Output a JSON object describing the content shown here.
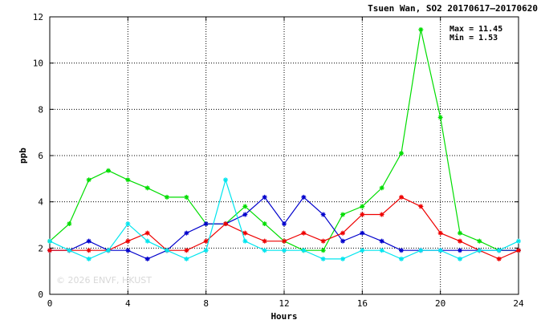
{
  "chart_data": {
    "type": "line",
    "title": "Tsuen Wan, SO2 20170617–20170620",
    "stats": {
      "max_label": "Max = 11.45",
      "min_label": "Min =  1.53"
    },
    "xlabel": "Hours",
    "ylabel": "ppb",
    "xlim": [
      0,
      24
    ],
    "ylim": [
      0,
      12
    ],
    "xticks": [
      0,
      4,
      8,
      12,
      16,
      20,
      24
    ],
    "yticks": [
      0,
      2,
      4,
      6,
      8,
      10,
      12
    ],
    "grid": true,
    "watermark": "© 2026  ENVF, HKUST",
    "x": [
      0,
      1,
      2,
      3,
      4,
      5,
      6,
      7,
      8,
      9,
      10,
      11,
      12,
      13,
      14,
      15,
      16,
      17,
      18,
      19,
      20,
      21,
      22,
      23,
      24
    ],
    "series": [
      {
        "color": "#00dd00",
        "values": [
          2.3,
          3.05,
          4.95,
          5.35,
          4.95,
          4.6,
          4.2,
          4.2,
          3.05,
          3.05,
          3.8,
          3.05,
          2.3,
          1.9,
          1.9,
          3.45,
          3.8,
          4.6,
          6.1,
          11.45,
          7.65,
          2.65,
          2.3,
          1.9,
          1.9
        ]
      },
      {
        "color": "#0000cc",
        "values": [
          1.9,
          1.9,
          2.3,
          1.9,
          1.9,
          1.53,
          1.9,
          2.65,
          3.05,
          3.05,
          3.45,
          4.2,
          3.05,
          4.2,
          3.45,
          2.3,
          2.65,
          2.3,
          1.9,
          1.9,
          1.9,
          1.9,
          1.9,
          1.9,
          1.9
        ]
      },
      {
        "color": "#ee0000",
        "values": [
          1.9,
          1.9,
          1.9,
          1.9,
          2.3,
          2.65,
          1.9,
          1.9,
          2.3,
          3.05,
          2.65,
          2.3,
          2.3,
          2.65,
          2.3,
          2.65,
          3.45,
          3.45,
          4.2,
          3.8,
          2.65,
          2.3,
          1.9,
          1.53,
          1.9
        ]
      },
      {
        "color": "#00e5ee",
        "values": [
          2.3,
          1.9,
          1.53,
          1.9,
          3.05,
          2.3,
          1.9,
          1.53,
          1.9,
          4.95,
          2.3,
          1.9,
          1.9,
          1.9,
          1.53,
          1.53,
          1.9,
          1.9,
          1.53,
          1.9,
          1.9,
          1.53,
          1.9,
          1.9,
          2.3
        ]
      }
    ]
  }
}
